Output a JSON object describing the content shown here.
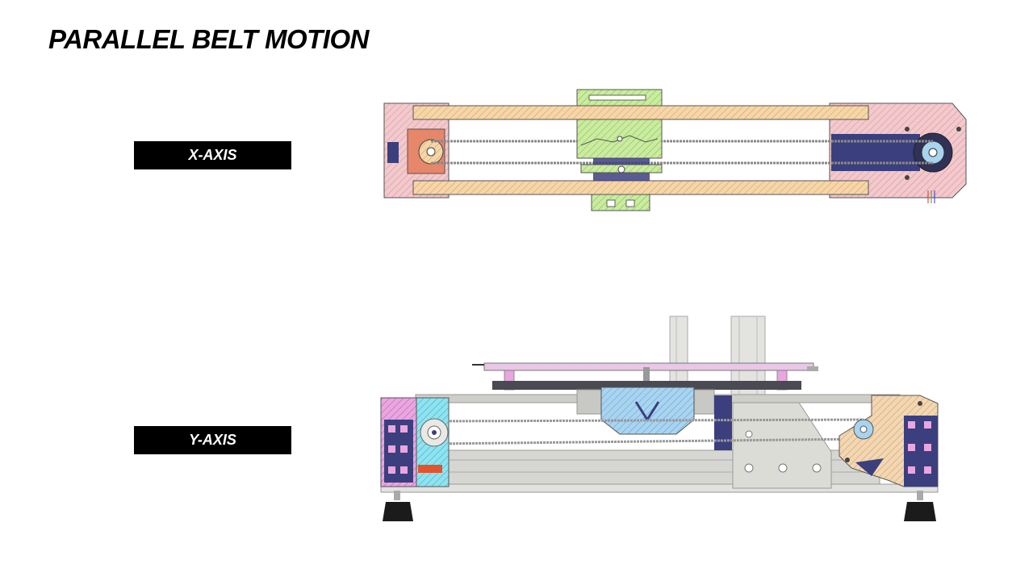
{
  "title": "PARALLEL BELT MOTION",
  "labels": {
    "x_axis": "X-AXIS",
    "y_axis": "Y-AXIS"
  },
  "colors": {
    "pink": "#f2c9cc",
    "orange_rod": "#f6d6a8",
    "green_carriage": "#c9ec9f",
    "navy_part": "#3b3f7e",
    "light_blue": "#a9d4f0",
    "tan_bracket": "#f3d7b2",
    "magenta_bracket": "#e9a6e0",
    "cyan_part": "#8fe3f0",
    "gray_frame": "#d6d6d2",
    "red_part": "#e0542e"
  }
}
